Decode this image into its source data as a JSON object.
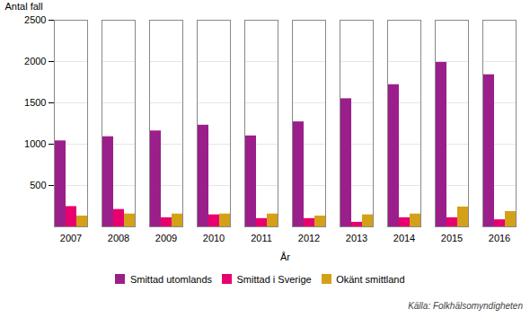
{
  "chart_data": {
    "type": "bar",
    "categories": [
      "2007",
      "2008",
      "2009",
      "2010",
      "2011",
      "2012",
      "2013",
      "2014",
      "2015",
      "2016"
    ],
    "series": [
      {
        "name": "Smittad utomlands",
        "color": "#9B1F8A",
        "values": [
          1040,
          1090,
          1160,
          1230,
          1100,
          1270,
          1550,
          1720,
          1990,
          1840
        ]
      },
      {
        "name": "Smittad i Sverige",
        "color": "#E8006E",
        "values": [
          245,
          210,
          110,
          145,
          100,
          100,
          55,
          110,
          110,
          85
        ]
      },
      {
        "name": "Okänt smittland",
        "color": "#D4A017",
        "values": [
          130,
          155,
          155,
          155,
          155,
          130,
          145,
          155,
          240,
          185
        ]
      }
    ],
    "xlabel": "År",
    "ylabel": "Antal fall",
    "ylim": [
      0,
      2500
    ],
    "yticks": [
      500,
      1000,
      1500,
      2000,
      2500
    ],
    "grid": true,
    "legend": "bottom",
    "annotations": [
      "Källa:  Folkhälsomyndigheten"
    ]
  }
}
